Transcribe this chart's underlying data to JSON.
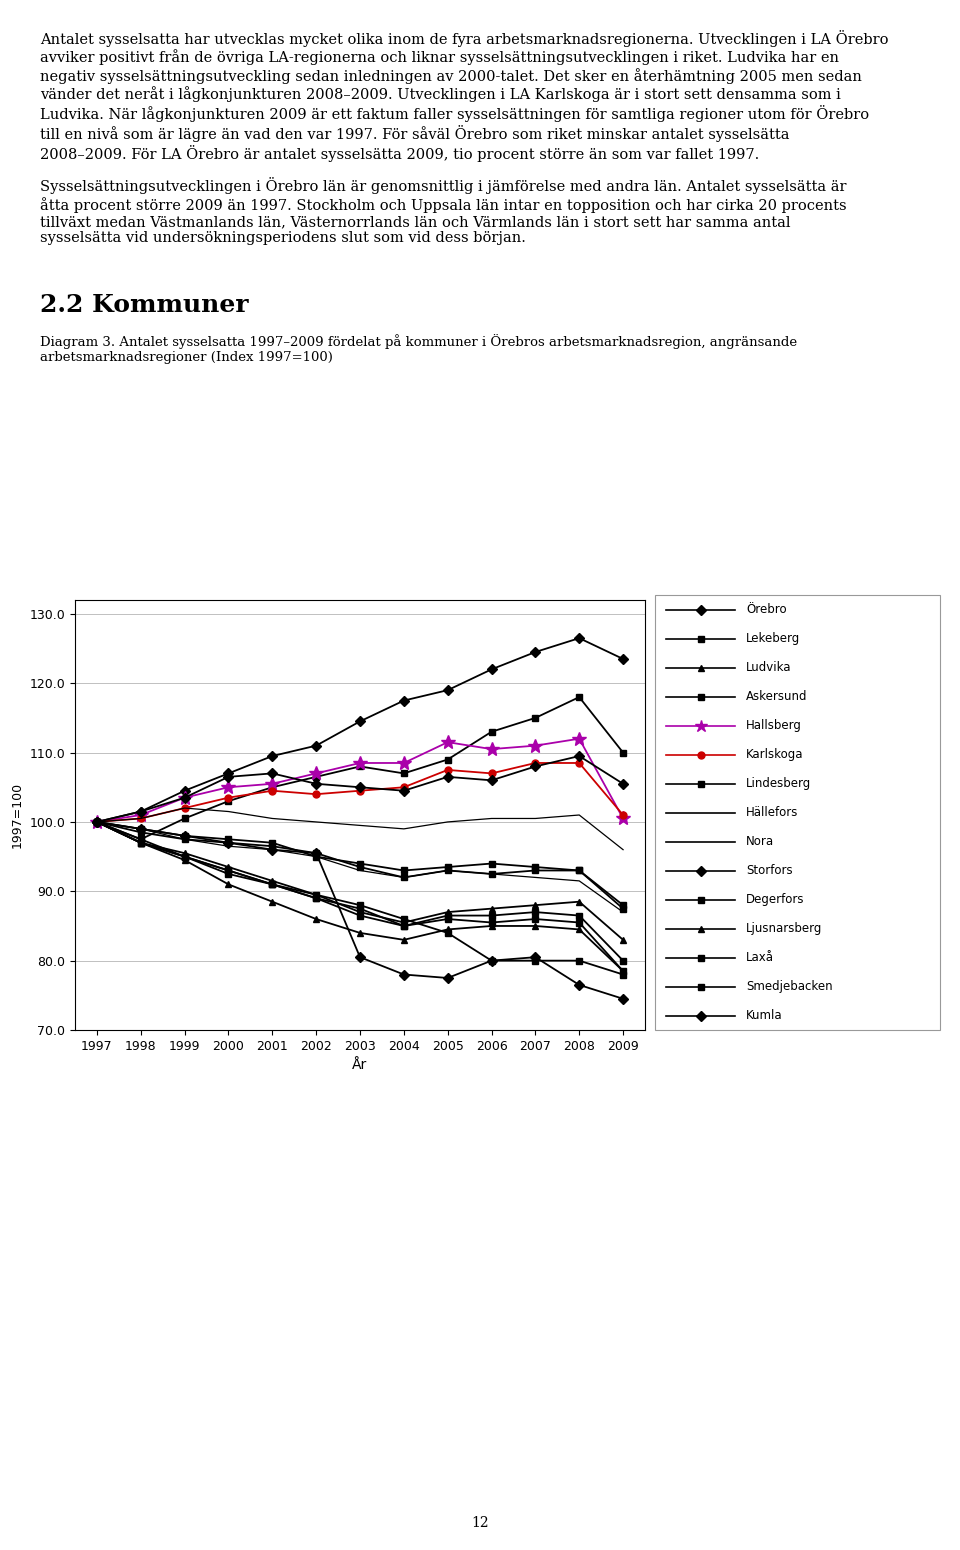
{
  "years": [
    1997,
    1998,
    1999,
    2000,
    2001,
    2002,
    2003,
    2004,
    2005,
    2006,
    2007,
    2008,
    2009
  ],
  "series": {
    "Örebro": [
      100.0,
      101.5,
      104.5,
      107.0,
      109.5,
      111.0,
      114.5,
      117.5,
      119.0,
      122.0,
      124.5,
      126.5,
      123.5
    ],
    "Lekeberg": [
      100.0,
      97.5,
      100.5,
      103.0,
      105.0,
      106.5,
      108.0,
      107.0,
      109.0,
      113.0,
      115.0,
      118.0,
      110.0
    ],
    "Ludvika": [
      100.0,
      97.0,
      95.5,
      93.5,
      91.5,
      89.5,
      87.0,
      85.5,
      87.0,
      87.5,
      88.0,
      88.5,
      83.0
    ],
    "Askersund": [
      100.0,
      99.0,
      98.0,
      97.5,
      97.0,
      95.0,
      94.0,
      93.0,
      93.5,
      94.0,
      93.5,
      93.0,
      88.0
    ],
    "Hallsberg": [
      100.0,
      101.0,
      103.5,
      105.0,
      105.5,
      107.0,
      108.5,
      108.5,
      111.5,
      110.5,
      111.0,
      112.0,
      100.5
    ],
    "Karlskoga": [
      100.0,
      100.5,
      102.0,
      103.5,
      104.5,
      104.0,
      104.5,
      105.0,
      107.5,
      107.0,
      108.5,
      108.5,
      101.0
    ],
    "Lindesberg": [
      100.0,
      98.5,
      97.5,
      97.0,
      96.5,
      95.5,
      93.5,
      92.0,
      93.0,
      92.5,
      93.0,
      93.0,
      87.5
    ],
    "Hällefors": [
      100.0,
      99.0,
      97.5,
      96.5,
      96.0,
      95.0,
      93.0,
      92.0,
      93.0,
      92.5,
      92.0,
      91.5,
      87.0
    ],
    "Nora": [
      100.0,
      100.5,
      102.0,
      101.5,
      100.5,
      100.0,
      99.5,
      99.0,
      100.0,
      100.5,
      100.5,
      101.0,
      96.0
    ],
    "Storfors": [
      100.0,
      101.5,
      103.5,
      106.5,
      107.0,
      105.5,
      105.0,
      104.5,
      106.5,
      106.0,
      108.0,
      109.5,
      105.5
    ],
    "Degerfors": [
      100.0,
      97.5,
      95.0,
      93.0,
      91.0,
      89.0,
      86.5,
      85.0,
      86.5,
      86.5,
      87.0,
      86.5,
      80.0
    ],
    "Ljusnarsberg": [
      100.0,
      97.0,
      94.5,
      91.0,
      88.5,
      86.0,
      84.0,
      83.0,
      84.5,
      85.0,
      85.0,
      84.5,
      78.5
    ],
    "Laxå": [
      100.0,
      97.0,
      95.0,
      93.0,
      91.0,
      89.5,
      88.0,
      86.0,
      84.0,
      80.0,
      80.0,
      80.0,
      78.0
    ],
    "Smedjebacken": [
      100.0,
      97.0,
      95.0,
      92.5,
      91.0,
      89.0,
      87.5,
      85.0,
      86.0,
      85.5,
      86.0,
      85.5,
      78.5
    ],
    "Kumla": [
      100.0,
      99.0,
      98.0,
      97.0,
      96.0,
      95.5,
      80.5,
      78.0,
      77.5,
      80.0,
      80.5,
      76.5,
      74.5
    ]
  },
  "colors": {
    "Örebro": "#000000",
    "Lekeberg": "#000000",
    "Ludvika": "#000000",
    "Askersund": "#000000",
    "Hallsberg": "#aa00aa",
    "Karlskoga": "#cc0000",
    "Lindesberg": "#000000",
    "Hällefors": "#000000",
    "Nora": "#000000",
    "Storfors": "#000000",
    "Degerfors": "#000000",
    "Ljusnarsberg": "#000000",
    "Laxå": "#000000",
    "Smedjebacken": "#000000",
    "Kumla": "#000000"
  },
  "markers": {
    "Örebro": "D",
    "Lekeberg": "s",
    "Ludvika": "^",
    "Askersund": "s",
    "Hallsberg": "*",
    "Karlskoga": "o",
    "Lindesberg": "s",
    "Hällefors": "None",
    "Nora": "None",
    "Storfors": "D",
    "Degerfors": "s",
    "Ljusnarsberg": "^",
    "Laxå": "s",
    "Smedjebacken": "s",
    "Kumla": "D"
  },
  "diagram_title": "Diagram 3. Antalet sysselsatta 1997–2009 fördelat på kommuner i Örebros arbetsmarknadsregion, angränsande\narbetsmarknadsregioner (Index 1997=100)",
  "section_heading": "2.2 Kommuner",
  "xlabel": "År",
  "ylabel": "1997=100",
  "ylim": [
    70.0,
    132.0
  ],
  "yticks": [
    70.0,
    80.0,
    90.0,
    100.0,
    110.0,
    120.0,
    130.0
  ],
  "background_color": "#ffffff",
  "page_number": "12",
  "body_text_1": "Antalet sysselsatta har utvecklas mycket olika inom de fyra arbetsmarknadsregionerna. Utvecklingen i LA Örebro avviker positivt från de övriga LA-regionerna och liknar sysselsättningsutvecklingen i riket. Ludvika har en negativ sysselsättningsutveckling sedan inledningen av 2000-talet. Det sker en återhämtning 2005 men sedan vänder det neråt i lågkonjunkturen 2008–2009. Utvecklingen i LA Karlskoga är i stort sett densamma som i Ludvika. När lågkonjunkturen 2009 är ett faktum faller sysselsättningen för samtliga regioner utom för Örebro till en nivå som är lägre än vad den var 1997. För såväl Örebro som riket minskar antalet sysselsätta 2008–2009. För LA Örebro är antalet sysselsätta 2009, tio procent större än som var fallet 1997.",
  "body_text_2": "Sysselsättningsutvecklingen i Örebro län är genomsnittlig i jämförelse med andra län. Antalet sysselsätta är åtta procent större 2009 än 1997. Stockholm och Uppsala län intar en topposition och har cirka 20 procents tillväxt medan Västmanlands län, Västernorrlands län och Värmlands län i stort sett har samma antal sysselsätta vid undersökningsperiodens slut som vid dess början."
}
